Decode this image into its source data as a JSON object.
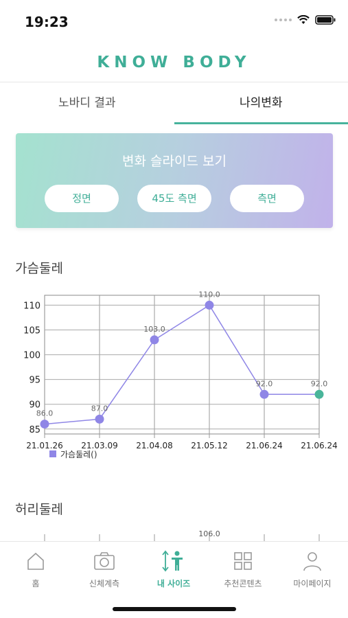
{
  "status_bar": {
    "time": "19:23"
  },
  "app": {
    "title": "KNOW BODY"
  },
  "tabs": [
    {
      "label": "노바디 결과",
      "active": false
    },
    {
      "label": "나의변화",
      "active": true
    }
  ],
  "slide_card": {
    "title": "변화 슬라이드 보기",
    "buttons": [
      "정면",
      "45도 측면",
      "측면"
    ]
  },
  "sections": {
    "chest": "가슴둘레",
    "waist": "허리둘레"
  },
  "chart_data": [
    {
      "type": "line",
      "categories": [
        "21.01.26",
        "21.03.09",
        "21.04.08",
        "21.05.12",
        "21.06.24",
        "21.06.24"
      ],
      "series": [
        {
          "name": "가슴둘레()",
          "values": [
            86.0,
            87.0,
            103.0,
            110.0,
            92.0,
            92.0
          ]
        }
      ],
      "point_labels": [
        "86.0",
        "87.0",
        "103.0",
        "110.0",
        "92.0",
        "92.0"
      ],
      "y_ticks": [
        "110",
        "105",
        "100",
        "95",
        "90",
        "85"
      ],
      "ylim": [
        84,
        112
      ],
      "grid": true,
      "legend_position": "bottom-left",
      "line_color": "#8f86e6",
      "last_point_color": "#49b59a"
    },
    {
      "type": "line",
      "visible_point_label": "106.0"
    }
  ],
  "bottom_nav": [
    {
      "label": "홈",
      "icon": "home-icon",
      "active": false
    },
    {
      "label": "신체계측",
      "icon": "camera-icon",
      "active": false
    },
    {
      "label": "내 사이즈",
      "icon": "body-size-icon",
      "active": true
    },
    {
      "label": "추천콘텐츠",
      "icon": "grid-icon",
      "active": false
    },
    {
      "label": "마이페이지",
      "icon": "person-icon",
      "active": false
    }
  ],
  "colors": {
    "accent": "#3fae97",
    "line": "#8f86e6"
  }
}
